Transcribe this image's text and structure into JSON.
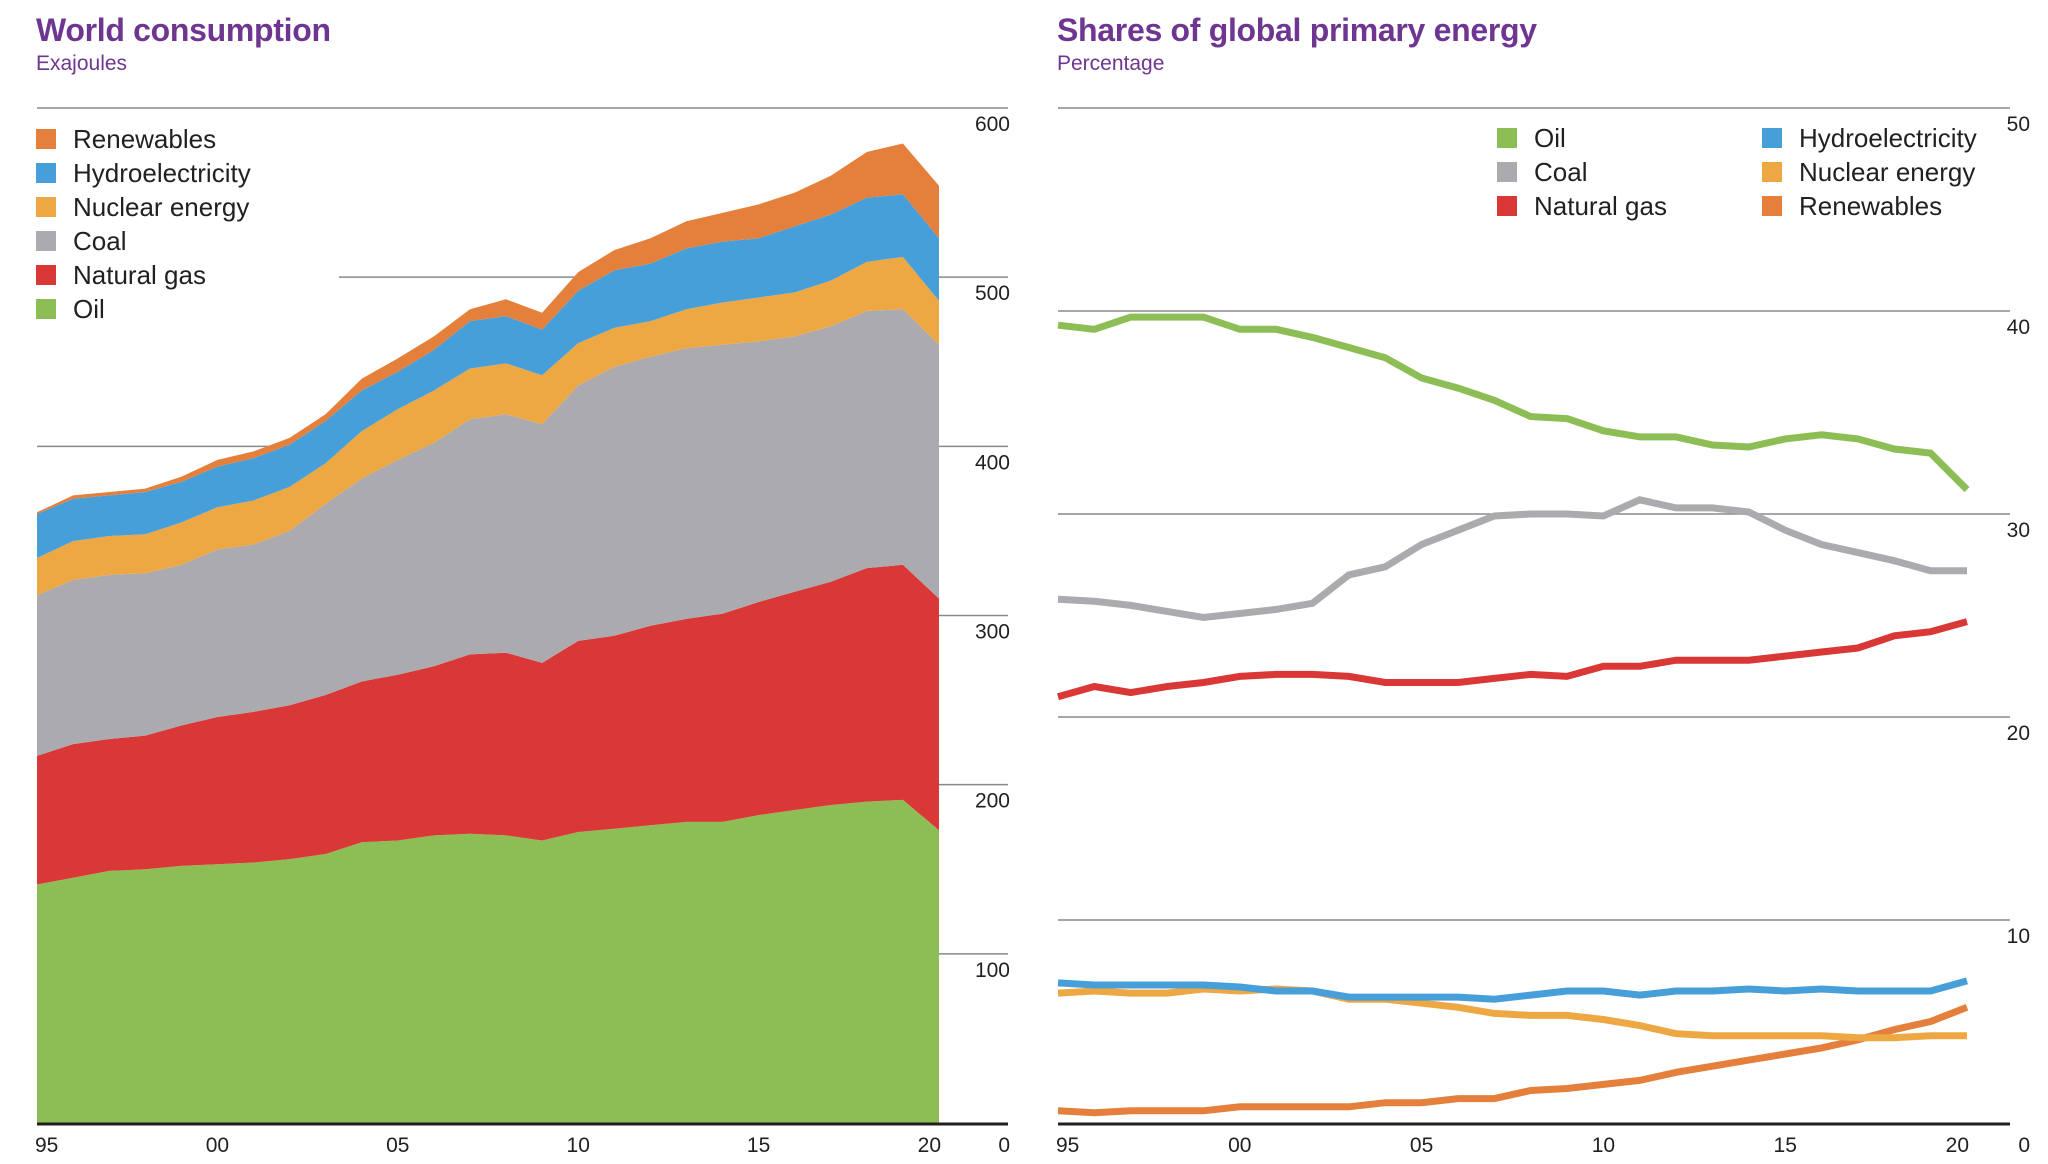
{
  "colors": {
    "title": "#6e3591",
    "Oil": "#8dbe55",
    "Natural gas": "#da3837",
    "Coal": "#abaaae",
    "Nuclear energy": "#eda844",
    "Hydroelectricity": "#469fd8",
    "Renewables": "#e5803c",
    "grid": "#8a8a8a",
    "axis": "#231f20"
  },
  "chart_data": [
    {
      "type": "area",
      "stacked": true,
      "title": "World consumption",
      "subtitle": "Exajoules",
      "xlabel": "",
      "ylabel": "Exajoules",
      "ylim": [
        0,
        600
      ],
      "yticks": [
        0,
        100,
        200,
        300,
        400,
        500,
        600
      ],
      "y_axis_side": "right",
      "grid": true,
      "legend_position": "top-left",
      "legend_order": [
        "Renewables",
        "Hydroelectricity",
        "Nuclear energy",
        "Coal",
        "Natural gas",
        "Oil"
      ],
      "x": [
        1995,
        1996,
        1997,
        1998,
        1999,
        2000,
        2001,
        2002,
        2003,
        2004,
        2005,
        2006,
        2007,
        2008,
        2009,
        2010,
        2011,
        2012,
        2013,
        2014,
        2015,
        2016,
        2017,
        2018,
        2019,
        2020
      ],
      "xtick_labels": [
        {
          "year": 1995,
          "label": "95"
        },
        {
          "year": 2000,
          "label": "00"
        },
        {
          "year": 2005,
          "label": "05"
        },
        {
          "year": 2010,
          "label": "10"
        },
        {
          "year": 2015,
          "label": "15"
        },
        {
          "year": 2020,
          "label": "20"
        }
      ],
      "series": [
        {
          "name": "Oil",
          "values": [
            141,
            145,
            149,
            150,
            152,
            153,
            154,
            156,
            159,
            166,
            167,
            170,
            171,
            170,
            167,
            172,
            174,
            176,
            178,
            178,
            182,
            185,
            188,
            190,
            191,
            173
          ]
        },
        {
          "name": "Natural gas",
          "values": [
            76,
            79,
            78,
            79,
            83,
            87,
            89,
            91,
            94,
            95,
            98,
            100,
            106,
            108,
            105,
            113,
            114,
            118,
            120,
            123,
            126,
            129,
            132,
            138,
            139,
            137
          ]
        },
        {
          "name": "Coal",
          "values": [
            95,
            97,
            97,
            96,
            95,
            99,
            99,
            103,
            113,
            120,
            127,
            132,
            139,
            141,
            141,
            151,
            159,
            159,
            160,
            159,
            154,
            151,
            151,
            152,
            151,
            150
          ]
        },
        {
          "name": "Nuclear energy",
          "values": [
            22,
            23,
            23,
            23,
            25,
            25,
            26,
            26,
            24,
            28,
            30,
            31,
            30,
            30,
            29,
            25,
            23,
            21,
            23,
            25,
            26,
            26,
            27,
            29,
            31,
            26
          ]
        },
        {
          "name": "Hydroelectricity",
          "values": [
            26,
            25,
            24,
            25,
            24,
            24,
            25,
            25,
            25,
            24,
            22,
            24,
            28,
            28,
            27,
            31,
            34,
            34,
            36,
            36,
            35,
            39,
            39,
            38,
            37,
            37
          ]
        },
        {
          "name": "Renewables",
          "values": [
            1,
            2,
            2,
            2,
            3,
            4,
            4,
            4,
            4,
            7,
            8,
            8,
            7,
            10,
            10,
            11,
            12,
            15,
            16,
            17,
            20,
            20,
            23,
            27,
            30,
            31
          ]
        }
      ]
    },
    {
      "type": "line",
      "title": "Shares of global primary energy",
      "subtitle": "Percentage",
      "xlabel": "",
      "ylabel": "Percentage",
      "ylim": [
        0,
        50
      ],
      "yticks": [
        0,
        10,
        20,
        30,
        40,
        50
      ],
      "y_axis_side": "right",
      "grid": true,
      "legend_position": "top-right",
      "legend_columns": [
        [
          "Oil",
          "Coal",
          "Natural gas"
        ],
        [
          "Hydroelectricity",
          "Nuclear energy",
          "Renewables"
        ]
      ],
      "x": [
        1995,
        1996,
        1997,
        1998,
        1999,
        2000,
        2001,
        2002,
        2003,
        2004,
        2005,
        2006,
        2007,
        2008,
        2009,
        2010,
        2011,
        2012,
        2013,
        2014,
        2015,
        2016,
        2017,
        2018,
        2019,
        2020
      ],
      "xtick_labels": [
        {
          "year": 1995,
          "label": "95"
        },
        {
          "year": 2000,
          "label": "00"
        },
        {
          "year": 2005,
          "label": "05"
        },
        {
          "year": 2010,
          "label": "10"
        },
        {
          "year": 2015,
          "label": "15"
        },
        {
          "year": 2020,
          "label": "20"
        }
      ],
      "series": [
        {
          "name": "Oil",
          "values": [
            39.3,
            39.1,
            39.7,
            39.7,
            39.7,
            39.1,
            39.1,
            38.7,
            38.2,
            37.7,
            36.7,
            36.2,
            35.6,
            34.8,
            34.7,
            34.1,
            33.8,
            33.8,
            33.4,
            33.3,
            33.7,
            33.9,
            33.7,
            33.2,
            33.0,
            31.2
          ]
        },
        {
          "name": "Coal",
          "values": [
            25.8,
            25.7,
            25.5,
            25.2,
            24.9,
            25.1,
            25.3,
            25.6,
            27.0,
            27.4,
            28.5,
            29.2,
            29.9,
            30.0,
            30.0,
            29.9,
            30.7,
            30.3,
            30.3,
            30.1,
            29.2,
            28.5,
            28.1,
            27.7,
            27.2,
            27.2
          ]
        },
        {
          "name": "Natural gas",
          "values": [
            21.0,
            21.5,
            21.2,
            21.5,
            21.7,
            22.0,
            22.1,
            22.1,
            22.0,
            21.7,
            21.7,
            21.7,
            21.9,
            22.1,
            22.0,
            22.5,
            22.5,
            22.8,
            22.8,
            22.8,
            23.0,
            23.2,
            23.4,
            24.0,
            24.2,
            24.7
          ]
        },
        {
          "name": "Hydroelectricity",
          "values": [
            6.9,
            6.8,
            6.8,
            6.8,
            6.8,
            6.7,
            6.5,
            6.5,
            6.2,
            6.2,
            6.2,
            6.2,
            6.1,
            6.3,
            6.5,
            6.5,
            6.3,
            6.5,
            6.5,
            6.6,
            6.5,
            6.6,
            6.5,
            6.5,
            6.5,
            7.0
          ]
        },
        {
          "name": "Nuclear energy",
          "values": [
            6.4,
            6.5,
            6.4,
            6.4,
            6.6,
            6.5,
            6.6,
            6.5,
            6.1,
            6.1,
            5.9,
            5.7,
            5.4,
            5.3,
            5.3,
            5.1,
            4.8,
            4.4,
            4.3,
            4.3,
            4.3,
            4.3,
            4.2,
            4.2,
            4.3,
            4.3
          ]
        },
        {
          "name": "Renewables",
          "values": [
            0.6,
            0.5,
            0.6,
            0.6,
            0.6,
            0.8,
            0.8,
            0.8,
            0.8,
            1.0,
            1.0,
            1.2,
            1.2,
            1.6,
            1.7,
            1.9,
            2.1,
            2.5,
            2.8,
            3.1,
            3.4,
            3.7,
            4.1,
            4.6,
            5.0,
            5.7
          ]
        }
      ]
    }
  ]
}
